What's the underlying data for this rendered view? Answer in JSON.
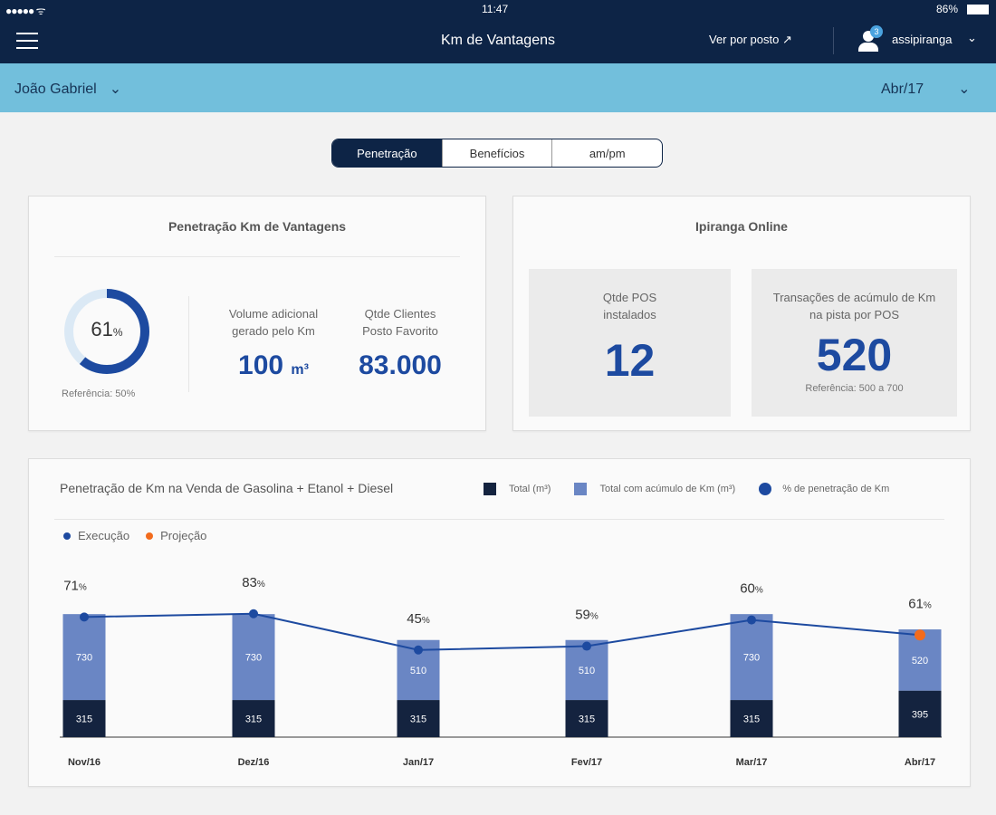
{
  "status": {
    "time": "11:47",
    "battery": "86%"
  },
  "nav": {
    "title": "Km de Vantagens",
    "ver_por_posto": "Ver por posto",
    "user": "assipiranga",
    "badge": "3"
  },
  "filters": {
    "person": "João Gabriel",
    "period": "Abr/17"
  },
  "tabs": [
    {
      "label": "Penetração",
      "active": true
    },
    {
      "label": "Benefícios"
    },
    {
      "label": "am/pm"
    }
  ],
  "penetracao": {
    "title": "Penetração Km de Vantagens",
    "percent": "61",
    "percent_unit": "%",
    "donut_fraction": 0.61,
    "reference": "Referência: 50%",
    "volume_label": "Volume adicional gerado pelo Km",
    "volume_value": "100",
    "volume_unit": "m³",
    "clientes_label": "Qtde Clientes Posto Favorito",
    "clientes_value": "83.000"
  },
  "online": {
    "title": "Ipiranga Online",
    "pos_label": "Qtde POS instalados",
    "pos_value": "12",
    "trans_label": "Transações de acúmulo de Km na pista por POS",
    "trans_value": "520",
    "trans_ref": "Referência: 500 a 700"
  },
  "chart_data": {
    "type": "bar",
    "title": "Penetração de Km na Venda de Gasolina + Etanol + Diesel",
    "legend": [
      "Total (m³)",
      "Total com acúmulo de Km (m³)",
      "% de penetração de Km"
    ],
    "sublegend": [
      "Execução",
      "Projeção"
    ],
    "categories": [
      "Nov/16",
      "Dez/16",
      "Jan/17",
      "Fev/17",
      "Mar/17",
      "Abr/17"
    ],
    "series": [
      {
        "name": "Total (m³)",
        "values": [
          315,
          315,
          315,
          315,
          315,
          395
        ]
      },
      {
        "name": "Total com acúmulo de Km (m³)",
        "values": [
          730,
          730,
          510,
          510,
          730,
          520
        ]
      },
      {
        "name": "% de penetração de Km",
        "values": [
          71,
          83,
          45,
          59,
          60,
          61
        ]
      }
    ],
    "point_types": [
      "Execução",
      "Execução",
      "Execução",
      "Execução",
      "Execução",
      "Projeção"
    ],
    "colors": {
      "total": "#14233f",
      "acumulo": "#6a86c4",
      "line": "#1d4aa0",
      "projecao": "#f26b1d"
    }
  }
}
